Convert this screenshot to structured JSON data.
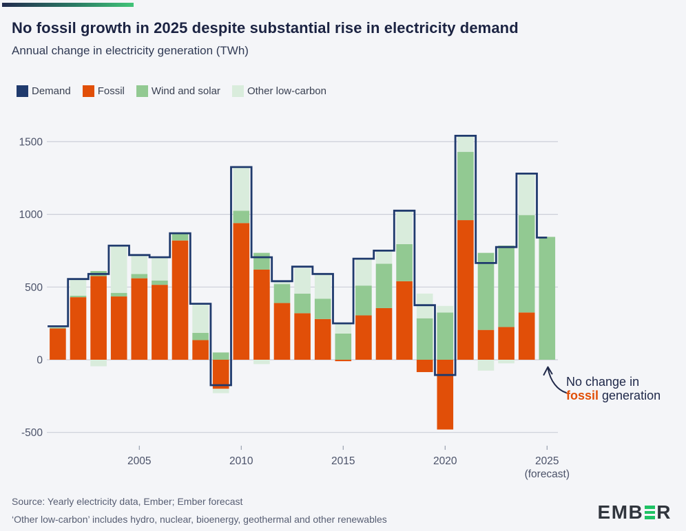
{
  "header": {
    "title": "No fossil growth in 2025 despite substantial rise in electricity demand",
    "subtitle": "Annual change in electricity generation (TWh)"
  },
  "legend": {
    "items": [
      {
        "label": "Demand",
        "color": "#1f3a6d"
      },
      {
        "label": "Fossil",
        "color": "#e14f08"
      },
      {
        "label": "Wind and solar",
        "color": "#92c992"
      },
      {
        "label": "Other low-carbon",
        "color": "#d9ecdc"
      }
    ]
  },
  "chart_data": {
    "type": "bar",
    "stacked": true,
    "title": "Annual change in electricity generation (TWh)",
    "xlabel": "",
    "ylabel": "TWh",
    "ylim": [
      -600,
      1600
    ],
    "grid": true,
    "legend_position": "top",
    "x": [
      2001,
      2002,
      2003,
      2004,
      2005,
      2006,
      2007,
      2008,
      2009,
      2010,
      2011,
      2012,
      2013,
      2014,
      2015,
      2016,
      2017,
      2018,
      2019,
      2020,
      2021,
      2022,
      2023,
      2024,
      2025
    ],
    "series": [
      {
        "name": "Fossil",
        "type": "bar",
        "color": "#e14f08",
        "values": [
          215,
          430,
          575,
          435,
          560,
          515,
          820,
          135,
          -200,
          940,
          620,
          390,
          320,
          280,
          -10,
          305,
          355,
          540,
          -85,
          -480,
          960,
          205,
          225,
          325,
          0
        ]
      },
      {
        "name": "Wind and solar",
        "type": "bar",
        "color": "#92c992",
        "values": [
          5,
          10,
          35,
          25,
          30,
          30,
          45,
          50,
          50,
          85,
          115,
          130,
          135,
          140,
          180,
          205,
          305,
          255,
          285,
          325,
          470,
          530,
          560,
          670,
          845
        ]
      },
      {
        "name": "Other low-carbon",
        "type": "bar",
        "color": "#d9ecdc",
        "values": [
          10,
          115,
          -45,
          325,
          130,
          160,
          5,
          195,
          -30,
          295,
          -30,
          20,
          175,
          165,
          65,
          185,
          85,
          225,
          170,
          45,
          110,
          -75,
          -25,
          280,
          0
        ]
      },
      {
        "name": "Demand",
        "type": "step-line",
        "color": "#1f3a6d",
        "values": [
          230,
          555,
          590,
          785,
          720,
          705,
          870,
          385,
          -175,
          1325,
          705,
          540,
          640,
          590,
          250,
          695,
          750,
          1025,
          375,
          -105,
          1540,
          665,
          775,
          1280,
          840
        ]
      }
    ],
    "yticks": [
      1500,
      1000,
      500,
      0,
      -500
    ],
    "xticks": [
      {
        "value": 2005,
        "label": "2005"
      },
      {
        "value": 2010,
        "label": "2010"
      },
      {
        "value": 2015,
        "label": "2015"
      },
      {
        "value": 2020,
        "label": "2020"
      },
      {
        "value": 2025,
        "label": "2025",
        "sublabel": "(forecast)"
      }
    ],
    "colors": {
      "grid": "#cbced8",
      "tick": "#98a0af",
      "axis_label": "#4b5269"
    }
  },
  "annotation": {
    "line1": "No change in",
    "highlight": "fossil",
    "line2_rest": " generation",
    "highlight_color": "#e14f08"
  },
  "footer": {
    "source": "Source: Yearly electricity data, Ember; Ember forecast",
    "note": "‘Other low-carbon’ includes hydro, nuclear, bioenergy, geothermal and other renewables",
    "logo": {
      "part1": "EMB",
      "part2": "R",
      "bar_color": "#1fc264"
    }
  }
}
